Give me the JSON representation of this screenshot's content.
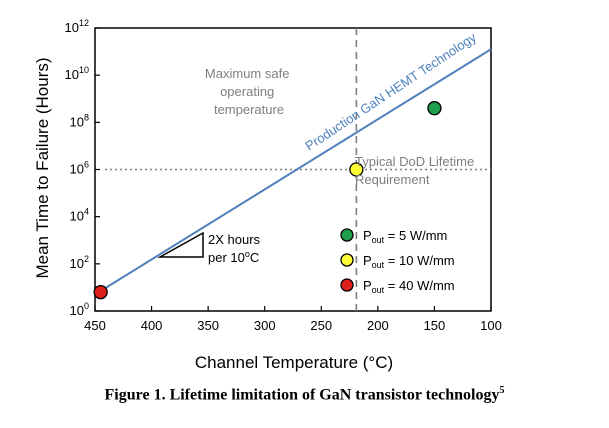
{
  "chart_data": {
    "type": "line",
    "title": "",
    "xlabel": "Channel Temperature (°C)",
    "ylabel": "Mean Time to Failure (Hours)",
    "xlim": [
      450,
      100
    ],
    "ylim_log10": [
      0,
      12
    ],
    "x_ticks": [
      450,
      400,
      350,
      300,
      250,
      200,
      150,
      100
    ],
    "y_ticks": [
      {
        "base": "10",
        "exp": "0",
        "log": 0
      },
      {
        "base": "10",
        "exp": "2",
        "log": 2
      },
      {
        "base": "10",
        "exp": "4",
        "log": 4
      },
      {
        "base": "10",
        "exp": "6",
        "log": 6
      },
      {
        "base": "10",
        "exp": "8",
        "log": 8
      },
      {
        "base": "10",
        "exp": "10",
        "log": 10
      },
      {
        "base": "10",
        "exp": "12",
        "log": 12
      }
    ],
    "series": [
      {
        "name": "Production GaN HEMT Technology",
        "color": "#4f81bd",
        "points": [
          {
            "x": 450,
            "log_y": 0.7
          },
          {
            "x": 100,
            "log_y": 11.1
          }
        ]
      }
    ],
    "markers": [
      {
        "x": 445,
        "log_y": 0.8,
        "color": "#e0201b",
        "label_sub": "out",
        "label_base": "P",
        "label_value": " = 40 W/mm"
      },
      {
        "x": 219,
        "log_y": 6.0,
        "color": "#ffff33",
        "label_sub": "out",
        "label_base": "P",
        "label_value": " = 10 W/mm"
      },
      {
        "x": 150,
        "log_y": 8.6,
        "color": "#1e9e4a",
        "label_sub": "out",
        "label_base": "P",
        "label_value": " = 5 W/mm"
      }
    ],
    "reference_lines": {
      "vertical": {
        "x": 219,
        "label_lines": [
          "Maximum safe",
          "operating",
          "temperature"
        ]
      },
      "horizontal": {
        "log_y": 6,
        "label_lines": [
          "Typical DoD Lifetime",
          "Requirement"
        ]
      }
    },
    "slope_note": [
      "2X hours",
      "per 10",
      "o",
      "C"
    ],
    "line_label": "Production GaN HEMT Technology",
    "legend_placement": "bottom-right"
  },
  "caption": {
    "text": "Figure 1. Lifetime limitation of GaN transistor technology",
    "superscript": "5"
  }
}
